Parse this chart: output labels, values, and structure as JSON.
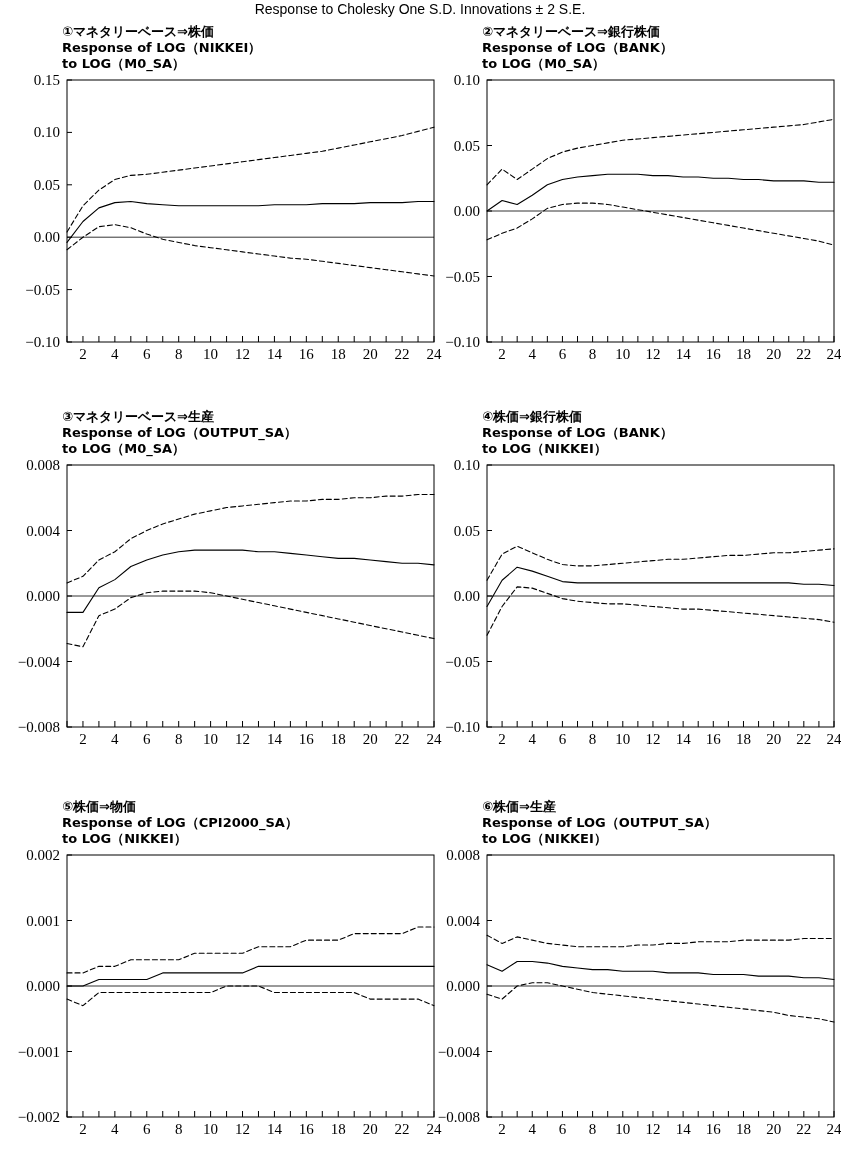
{
  "chart_data": [
    {
      "type": "line",
      "title": "①マネタリーベース⇒株価",
      "subtitle": "Response of LOG（NIKKEI）\nto LOG（M0_SA）",
      "annotations": [
        "Response to Cholesky One S.D. Innovations ± 2 S.E."
      ],
      "x": [
        1,
        2,
        3,
        4,
        5,
        6,
        7,
        8,
        9,
        10,
        11,
        12,
        13,
        14,
        15,
        16,
        17,
        18,
        19,
        20,
        21,
        22,
        23,
        24
      ],
      "xlim": [
        1,
        24
      ],
      "xticks": [
        {
          "value": 1,
          "label": null
        },
        2,
        {
          "value": 3,
          "label": null
        },
        4,
        {
          "value": 5,
          "label": null
        },
        6,
        {
          "value": 7,
          "label": null
        },
        8,
        {
          "value": 9,
          "label": null
        },
        10,
        {
          "value": 11,
          "label": null
        },
        12,
        {
          "value": 13,
          "label": null
        },
        14,
        {
          "value": 15,
          "label": null
        },
        16,
        {
          "value": 17,
          "label": null
        },
        18,
        {
          "value": 19,
          "label": null
        },
        20,
        {
          "value": 21,
          "label": null
        },
        22,
        {
          "value": 23,
          "label": null
        },
        24
      ],
      "ylim": [
        -0.1,
        0.15
      ],
      "yticks": [
        {
          "value": -0.1,
          "label": "−0.10"
        },
        {
          "value": -0.05,
          "label": "−0.05"
        },
        {
          "value": 0,
          "label": "0.00"
        },
        {
          "value": 0.05,
          "label": "0.05"
        },
        {
          "value": 0.1,
          "label": "0.10"
        },
        {
          "value": 0.15,
          "label": "0.15"
        }
      ],
      "ref_lines": [
        {
          "axis": "y",
          "value": 0,
          "color": "#000000",
          "line_style": "solid"
        }
      ],
      "grid": false,
      "series": [
        {
          "color": "#000000",
          "line_style": "solid",
          "values": [
            -0.005,
            0.015,
            0.028,
            0.033,
            0.034,
            0.032,
            0.031,
            0.03,
            0.03,
            0.03,
            0.03,
            0.03,
            0.03,
            0.031,
            0.031,
            0.031,
            0.032,
            0.032,
            0.032,
            0.033,
            0.033,
            0.033,
            0.034,
            0.034
          ]
        },
        {
          "color": "#000000",
          "line_style": "dashed",
          "values": [
            0.005,
            0.03,
            0.045,
            0.055,
            0.059,
            0.06,
            0.062,
            0.064,
            0.066,
            0.068,
            0.07,
            0.072,
            0.074,
            0.076,
            0.078,
            0.08,
            0.082,
            0.085,
            0.088,
            0.091,
            0.094,
            0.097,
            0.101,
            0.105
          ]
        },
        {
          "color": "#000000",
          "line_style": "dashed",
          "values": [
            -0.012,
            0.0,
            0.01,
            0.012,
            0.009,
            0.003,
            -0.002,
            -0.005,
            -0.008,
            -0.01,
            -0.012,
            -0.014,
            -0.016,
            -0.018,
            -0.02,
            -0.021,
            -0.023,
            -0.025,
            -0.027,
            -0.029,
            -0.031,
            -0.033,
            -0.035,
            -0.037
          ]
        }
      ]
    },
    {
      "type": "line",
      "title": "②マネタリーベース⇒銀行株価",
      "subtitle": "Response of LOG（BANK）\nto LOG（M0_SA）",
      "x": [
        1,
        2,
        3,
        4,
        5,
        6,
        7,
        8,
        9,
        10,
        11,
        12,
        13,
        14,
        15,
        16,
        17,
        18,
        19,
        20,
        21,
        22,
        23,
        24
      ],
      "xlim": [
        1,
        24
      ],
      "xticks": [
        {
          "value": 1,
          "label": null
        },
        2,
        {
          "value": 3,
          "label": null
        },
        4,
        {
          "value": 5,
          "label": null
        },
        6,
        {
          "value": 7,
          "label": null
        },
        8,
        {
          "value": 9,
          "label": null
        },
        10,
        {
          "value": 11,
          "label": null
        },
        12,
        {
          "value": 13,
          "label": null
        },
        14,
        {
          "value": 15,
          "label": null
        },
        16,
        {
          "value": 17,
          "label": null
        },
        18,
        {
          "value": 19,
          "label": null
        },
        20,
        {
          "value": 21,
          "label": null
        },
        22,
        {
          "value": 23,
          "label": null
        },
        24
      ],
      "ylim": [
        -0.1,
        0.1
      ],
      "yticks": [
        {
          "value": -0.1,
          "label": "−0.10"
        },
        {
          "value": -0.05,
          "label": "−0.05"
        },
        {
          "value": 0,
          "label": "0.00"
        },
        {
          "value": 0.05,
          "label": "0.05"
        },
        {
          "value": 0.1,
          "label": "0.10"
        }
      ],
      "ref_lines": [
        {
          "axis": "y",
          "value": 0,
          "color": "#000000",
          "line_style": "solid"
        }
      ],
      "grid": false,
      "series": [
        {
          "color": "#000000",
          "line_style": "solid",
          "values": [
            0.0,
            0.008,
            0.005,
            0.012,
            0.02,
            0.024,
            0.026,
            0.027,
            0.028,
            0.028,
            0.028,
            0.027,
            0.027,
            0.026,
            0.026,
            0.025,
            0.025,
            0.024,
            0.024,
            0.023,
            0.023,
            0.023,
            0.022,
            0.022
          ]
        },
        {
          "color": "#000000",
          "line_style": "dashed",
          "values": [
            0.02,
            0.032,
            0.024,
            0.032,
            0.04,
            0.045,
            0.048,
            0.05,
            0.052,
            0.054,
            0.055,
            0.056,
            0.057,
            0.058,
            0.059,
            0.06,
            0.061,
            0.062,
            0.063,
            0.064,
            0.065,
            0.066,
            0.068,
            0.07
          ]
        },
        {
          "color": "#000000",
          "line_style": "dashed",
          "values": [
            -0.022,
            -0.017,
            -0.013,
            -0.006,
            0.002,
            0.005,
            0.006,
            0.006,
            0.005,
            0.003,
            0.001,
            -0.001,
            -0.003,
            -0.005,
            -0.007,
            -0.009,
            -0.011,
            -0.013,
            -0.015,
            -0.017,
            -0.019,
            -0.021,
            -0.023,
            -0.026
          ]
        }
      ]
    },
    {
      "type": "line",
      "title": "③マネタリーベース⇒生産",
      "subtitle": "Response of LOG（OUTPUT_SA）\nto LOG（M0_SA）",
      "x": [
        1,
        2,
        3,
        4,
        5,
        6,
        7,
        8,
        9,
        10,
        11,
        12,
        13,
        14,
        15,
        16,
        17,
        18,
        19,
        20,
        21,
        22,
        23,
        24
      ],
      "xlim": [
        1,
        24
      ],
      "xticks": [
        {
          "value": 1,
          "label": null
        },
        2,
        {
          "value": 3,
          "label": null
        },
        4,
        {
          "value": 5,
          "label": null
        },
        6,
        {
          "value": 7,
          "label": null
        },
        8,
        {
          "value": 9,
          "label": null
        },
        10,
        {
          "value": 11,
          "label": null
        },
        12,
        {
          "value": 13,
          "label": null
        },
        14,
        {
          "value": 15,
          "label": null
        },
        16,
        {
          "value": 17,
          "label": null
        },
        18,
        {
          "value": 19,
          "label": null
        },
        20,
        {
          "value": 21,
          "label": null
        },
        22,
        {
          "value": 23,
          "label": null
        },
        24
      ],
      "ylim": [
        -0.008,
        0.008
      ],
      "yticks": [
        {
          "value": -0.008,
          "label": "−0.008"
        },
        {
          "value": -0.004,
          "label": "−0.004"
        },
        {
          "value": 0,
          "label": "0.000"
        },
        {
          "value": 0.004,
          "label": "0.004"
        },
        {
          "value": 0.008,
          "label": "0.008"
        }
      ],
      "ref_lines": [
        {
          "axis": "y",
          "value": 0,
          "color": "#000000",
          "line_style": "solid"
        }
      ],
      "grid": false,
      "series": [
        {
          "color": "#000000",
          "line_style": "solid",
          "values": [
            -0.001,
            -0.001,
            0.0005,
            0.001,
            0.0018,
            0.0022,
            0.0025,
            0.0027,
            0.0028,
            0.0028,
            0.0028,
            0.0028,
            0.0027,
            0.0027,
            0.0026,
            0.0025,
            0.0024,
            0.0023,
            0.0023,
            0.0022,
            0.0021,
            0.002,
            0.002,
            0.0019
          ]
        },
        {
          "color": "#000000",
          "line_style": "dashed",
          "values": [
            0.0008,
            0.0012,
            0.0022,
            0.0027,
            0.0035,
            0.004,
            0.0044,
            0.0047,
            0.005,
            0.0052,
            0.0054,
            0.0055,
            0.0056,
            0.0057,
            0.0058,
            0.0058,
            0.0059,
            0.0059,
            0.006,
            0.006,
            0.0061,
            0.0061,
            0.0062,
            0.0062
          ]
        },
        {
          "color": "#000000",
          "line_style": "dashed",
          "values": [
            -0.0029,
            -0.0031,
            -0.0012,
            -0.0008,
            -0.0001,
            0.0002,
            0.0003,
            0.0003,
            0.0003,
            0.0002,
            0.0,
            -0.0002,
            -0.0004,
            -0.0006,
            -0.0008,
            -0.001,
            -0.0012,
            -0.0014,
            -0.0016,
            -0.0018,
            -0.002,
            -0.0022,
            -0.0024,
            -0.0026
          ]
        }
      ]
    },
    {
      "type": "line",
      "title": "④株価⇒銀行株価",
      "subtitle": "Response of LOG（BANK）\nto LOG（NIKKEI）",
      "x": [
        1,
        2,
        3,
        4,
        5,
        6,
        7,
        8,
        9,
        10,
        11,
        12,
        13,
        14,
        15,
        16,
        17,
        18,
        19,
        20,
        21,
        22,
        23,
        24
      ],
      "xlim": [
        1,
        24
      ],
      "xticks": [
        {
          "value": 1,
          "label": null
        },
        2,
        {
          "value": 3,
          "label": null
        },
        4,
        {
          "value": 5,
          "label": null
        },
        6,
        {
          "value": 7,
          "label": null
        },
        8,
        {
          "value": 9,
          "label": null
        },
        10,
        {
          "value": 11,
          "label": null
        },
        12,
        {
          "value": 13,
          "label": null
        },
        14,
        {
          "value": 15,
          "label": null
        },
        16,
        {
          "value": 17,
          "label": null
        },
        18,
        {
          "value": 19,
          "label": null
        },
        20,
        {
          "value": 21,
          "label": null
        },
        22,
        {
          "value": 23,
          "label": null
        },
        24
      ],
      "ylim": [
        -0.1,
        0.1
      ],
      "yticks": [
        {
          "value": -0.1,
          "label": "−0.10"
        },
        {
          "value": -0.05,
          "label": "−0.05"
        },
        {
          "value": 0,
          "label": "0.00"
        },
        {
          "value": 0.05,
          "label": "0.05"
        },
        {
          "value": 0.1,
          "label": "0.10"
        }
      ],
      "ref_lines": [
        {
          "axis": "y",
          "value": 0,
          "color": "#000000",
          "line_style": "solid"
        }
      ],
      "grid": false,
      "series": [
        {
          "color": "#000000",
          "line_style": "solid",
          "values": [
            -0.008,
            0.012,
            0.022,
            0.019,
            0.015,
            0.011,
            0.01,
            0.01,
            0.01,
            0.01,
            0.01,
            0.01,
            0.01,
            0.01,
            0.01,
            0.01,
            0.01,
            0.01,
            0.01,
            0.01,
            0.01,
            0.009,
            0.009,
            0.008
          ]
        },
        {
          "color": "#000000",
          "line_style": "dashed",
          "values": [
            0.012,
            0.032,
            0.038,
            0.033,
            0.028,
            0.024,
            0.023,
            0.023,
            0.024,
            0.025,
            0.026,
            0.027,
            0.028,
            0.028,
            0.029,
            0.03,
            0.031,
            0.031,
            0.032,
            0.033,
            0.033,
            0.034,
            0.035,
            0.036
          ]
        },
        {
          "color": "#000000",
          "line_style": "dashed",
          "values": [
            -0.03,
            -0.008,
            0.007,
            0.006,
            0.002,
            -0.002,
            -0.004,
            -0.005,
            -0.006,
            -0.006,
            -0.007,
            -0.008,
            -0.009,
            -0.01,
            -0.01,
            -0.011,
            -0.012,
            -0.013,
            -0.014,
            -0.015,
            -0.016,
            -0.017,
            -0.018,
            -0.02
          ]
        }
      ]
    },
    {
      "type": "line",
      "title": "⑤株価⇒物価",
      "subtitle": "Response of LOG（CPI2000_SA）\nto LOG（NIKKEI）",
      "x": [
        1,
        2,
        3,
        4,
        5,
        6,
        7,
        8,
        9,
        10,
        11,
        12,
        13,
        14,
        15,
        16,
        17,
        18,
        19,
        20,
        21,
        22,
        23,
        24
      ],
      "xlim": [
        1,
        24
      ],
      "xticks": [
        {
          "value": 1,
          "label": null
        },
        2,
        {
          "value": 3,
          "label": null
        },
        4,
        {
          "value": 5,
          "label": null
        },
        6,
        {
          "value": 7,
          "label": null
        },
        8,
        {
          "value": 9,
          "label": null
        },
        10,
        {
          "value": 11,
          "label": null
        },
        12,
        {
          "value": 13,
          "label": null
        },
        14,
        {
          "value": 15,
          "label": null
        },
        16,
        {
          "value": 17,
          "label": null
        },
        18,
        {
          "value": 19,
          "label": null
        },
        20,
        {
          "value": 21,
          "label": null
        },
        22,
        {
          "value": 23,
          "label": null
        },
        24
      ],
      "ylim": [
        -0.002,
        0.002
      ],
      "yticks": [
        {
          "value": -0.002,
          "label": "−0.002"
        },
        {
          "value": -0.001,
          "label": "−0.001"
        },
        {
          "value": 0,
          "label": "0.000"
        },
        {
          "value": 0.001,
          "label": "0.001"
        },
        {
          "value": 0.002,
          "label": "0.002"
        }
      ],
      "ref_lines": [
        {
          "axis": "y",
          "value": 0,
          "color": "#000000",
          "line_style": "solid"
        }
      ],
      "grid": false,
      "series": [
        {
          "color": "#000000",
          "line_style": "solid",
          "values": [
            0.0,
            0.0,
            0.0001,
            0.0001,
            0.0001,
            0.0001,
            0.0002,
            0.0002,
            0.0002,
            0.0002,
            0.0002,
            0.0002,
            0.0003,
            0.0003,
            0.0003,
            0.0003,
            0.0003,
            0.0003,
            0.0003,
            0.0003,
            0.0003,
            0.0003,
            0.0003,
            0.0003
          ]
        },
        {
          "color": "#000000",
          "line_style": "dashed",
          "values": [
            0.0002,
            0.0002,
            0.0003,
            0.0003,
            0.0004,
            0.0004,
            0.0004,
            0.0004,
            0.0005,
            0.0005,
            0.0005,
            0.0005,
            0.0006,
            0.0006,
            0.0006,
            0.0007,
            0.0007,
            0.0007,
            0.0008,
            0.0008,
            0.0008,
            0.0008,
            0.0009,
            0.0009
          ]
        },
        {
          "color": "#000000",
          "line_style": "dashed",
          "values": [
            -0.0002,
            -0.0003,
            -0.0001,
            -0.0001,
            -0.0001,
            -0.0001,
            -0.0001,
            -0.0001,
            -0.0001,
            -0.0001,
            0.0,
            0.0,
            0.0,
            -0.0001,
            -0.0001,
            -0.0001,
            -0.0001,
            -0.0001,
            -0.0001,
            -0.0002,
            -0.0002,
            -0.0002,
            -0.0002,
            -0.0003
          ]
        }
      ]
    },
    {
      "type": "line",
      "title": "⑥株価⇒生産",
      "subtitle": "Response of LOG（OUTPUT_SA）\nto LOG（NIKKEI）",
      "x": [
        1,
        2,
        3,
        4,
        5,
        6,
        7,
        8,
        9,
        10,
        11,
        12,
        13,
        14,
        15,
        16,
        17,
        18,
        19,
        20,
        21,
        22,
        23,
        24
      ],
      "xlim": [
        1,
        24
      ],
      "xticks": [
        {
          "value": 1,
          "label": null
        },
        2,
        {
          "value": 3,
          "label": null
        },
        4,
        {
          "value": 5,
          "label": null
        },
        6,
        {
          "value": 7,
          "label": null
        },
        8,
        {
          "value": 9,
          "label": null
        },
        10,
        {
          "value": 11,
          "label": null
        },
        12,
        {
          "value": 13,
          "label": null
        },
        14,
        {
          "value": 15,
          "label": null
        },
        16,
        {
          "value": 17,
          "label": null
        },
        18,
        {
          "value": 19,
          "label": null
        },
        20,
        {
          "value": 21,
          "label": null
        },
        22,
        {
          "value": 23,
          "label": null
        },
        24
      ],
      "ylim": [
        -0.008,
        0.008
      ],
      "yticks": [
        {
          "value": -0.008,
          "label": "−0.008"
        },
        {
          "value": -0.004,
          "label": "−0.004"
        },
        {
          "value": 0,
          "label": "0.000"
        },
        {
          "value": 0.004,
          "label": "0.004"
        },
        {
          "value": 0.008,
          "label": "0.008"
        }
      ],
      "ref_lines": [
        {
          "axis": "y",
          "value": 0,
          "color": "#000000",
          "line_style": "solid"
        }
      ],
      "grid": false,
      "series": [
        {
          "color": "#000000",
          "line_style": "solid",
          "values": [
            0.0013,
            0.0009,
            0.0015,
            0.0015,
            0.0014,
            0.0012,
            0.0011,
            0.001,
            0.001,
            0.0009,
            0.0009,
            0.0009,
            0.0008,
            0.0008,
            0.0008,
            0.0007,
            0.0007,
            0.0007,
            0.0006,
            0.0006,
            0.0006,
            0.0005,
            0.0005,
            0.0004
          ]
        },
        {
          "color": "#000000",
          "line_style": "dashed",
          "values": [
            0.0031,
            0.0026,
            0.003,
            0.0028,
            0.0026,
            0.0025,
            0.0024,
            0.0024,
            0.0024,
            0.0024,
            0.0025,
            0.0025,
            0.0026,
            0.0026,
            0.0027,
            0.0027,
            0.0027,
            0.0028,
            0.0028,
            0.0028,
            0.0028,
            0.0029,
            0.0029,
            0.0029
          ]
        },
        {
          "color": "#000000",
          "line_style": "dashed",
          "values": [
            -0.0005,
            -0.0008,
            0.0,
            0.0002,
            0.0002,
            0.0,
            -0.0002,
            -0.0004,
            -0.0005,
            -0.0006,
            -0.0007,
            -0.0008,
            -0.0009,
            -0.001,
            -0.0011,
            -0.0012,
            -0.0013,
            -0.0014,
            -0.0015,
            -0.0016,
            -0.0018,
            -0.0019,
            -0.002,
            -0.0022
          ]
        }
      ]
    }
  ]
}
